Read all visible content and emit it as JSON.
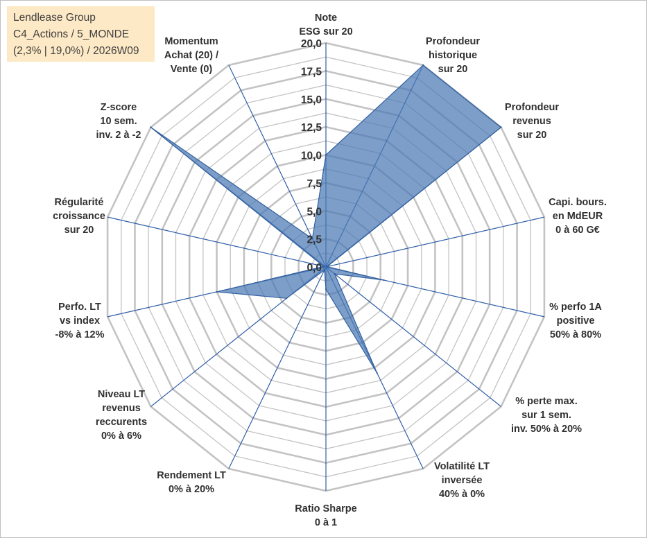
{
  "info": {
    "line1": "Lendlease Group",
    "line2": "C4_Actions / 5_MONDE",
    "line3": "(2,3% | 19,0%) / 2026W09"
  },
  "chart_data": {
    "type": "radar",
    "title": "",
    "rmin": 0,
    "rmax": 20,
    "tick_labels": [
      "0,0",
      "2,5",
      "5,0",
      "7,5",
      "10,0",
      "12,5",
      "15,0",
      "17,5",
      "20,0"
    ],
    "categories": [
      [
        "Note",
        "ESG sur 20"
      ],
      [
        "Profondeur",
        "historique",
        "sur 20"
      ],
      [
        "Profondeur",
        "revenus",
        "sur 20"
      ],
      [
        "Capi. bours.",
        "en MdEUR",
        "0 à 60 G€"
      ],
      [
        "% perfo 1A",
        "positive",
        "50% à 80%"
      ],
      [
        "% perte max.",
        "sur 1 sem.",
        "inv. 50% à 20%"
      ],
      [
        "Volatilité LT",
        "inversée",
        "40% à 0%"
      ],
      [
        "Ratio Sharpe",
        "0 à 1"
      ],
      [
        "Rendement LT",
        "0% à 20%"
      ],
      [
        "Niveau LT",
        "revenus",
        "reccurents",
        "0% à 6%"
      ],
      [
        "Perfo. LT",
        "vs index",
        "-8% à 12%"
      ],
      [
        "Régularité",
        "croissance",
        "sur 20"
      ],
      [
        "Z-score",
        "10 sem.",
        "inv. 2 à -2"
      ],
      [
        "Momentum",
        "Achat (20) /",
        "Vente (0)"
      ]
    ],
    "series": [
      {
        "name": "Lendlease Group",
        "values": [
          10.0,
          20.0,
          20.0,
          0.1,
          5.3,
          1.0,
          10.5,
          2.0,
          0.3,
          4.5,
          10.0,
          0.2,
          20.0,
          2.8
        ],
        "color": "#4a78b4"
      }
    ],
    "colors": {
      "grid": "#c3c3c3",
      "spoke": "#2e5ea8",
      "fill": "#4a78b4",
      "stroke": "#33609f"
    }
  }
}
